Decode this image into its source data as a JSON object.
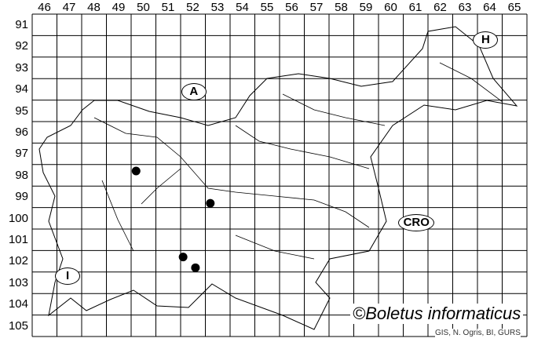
{
  "map": {
    "column_labels": [
      "46",
      "47",
      "48",
      "49",
      "50",
      "51",
      "52",
      "53",
      "54",
      "55",
      "56",
      "57",
      "58",
      "59",
      "60",
      "61",
      "62",
      "63",
      "64",
      "65"
    ],
    "row_labels": [
      "91",
      "92",
      "93",
      "94",
      "95",
      "96",
      "97",
      "98",
      "99",
      "100",
      "101",
      "102",
      "103",
      "104",
      "105"
    ],
    "country_labels": [
      {
        "text": "A",
        "col": 52.5,
        "row": 94.6
      },
      {
        "text": "H",
        "col": 64.3,
        "row": 92.2
      },
      {
        "text": "CRO",
        "col": 61.5,
        "row": 100.7
      },
      {
        "text": "I",
        "col": 47.4,
        "row": 103.2
      }
    ],
    "records": [
      {
        "col": 50.2,
        "row": 98.3
      },
      {
        "col": 53.2,
        "row": 99.8
      },
      {
        "col": 52.1,
        "row": 102.3
      },
      {
        "col": 52.6,
        "row": 102.8
      }
    ],
    "marker_color": "#000000",
    "copyright": "©Boletus informaticus",
    "credit": "GIS, N. Ogris, BI, GURS"
  }
}
